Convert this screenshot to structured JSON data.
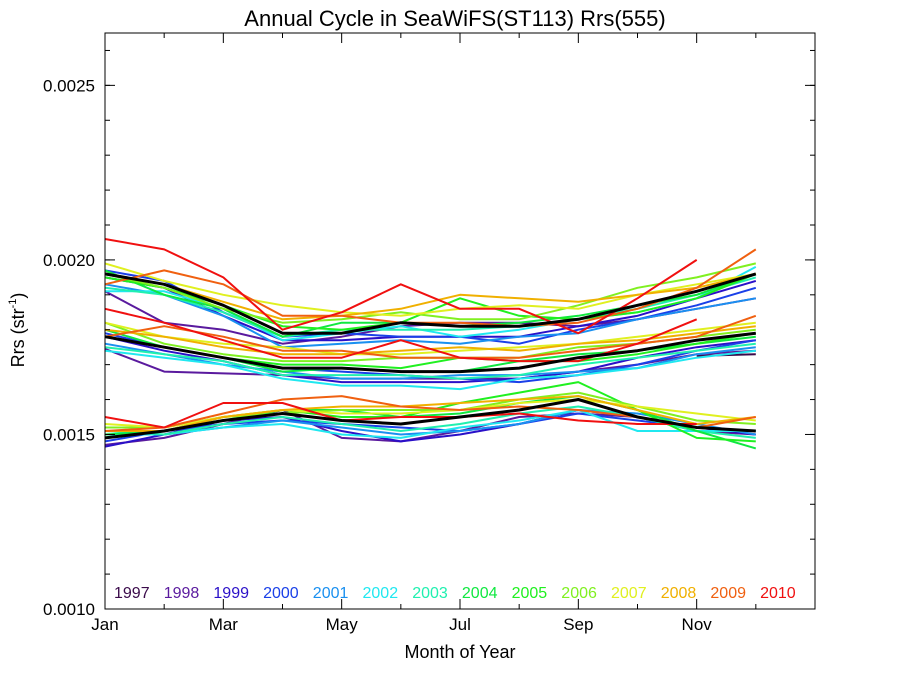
{
  "chart_data": {
    "type": "line",
    "title": "Annual Cycle in SeaWiFS(ST113) Rrs(555)",
    "xlabel": "Month of Year",
    "ylabel_main": "Rrs (str",
    "ylabel_sup": "-1",
    "ylabel_end": ")",
    "xlim": [
      1,
      13
    ],
    "ylim": [
      0.001,
      0.00265
    ],
    "x_ticks": [
      {
        "value": 1,
        "label": "Jan"
      },
      {
        "value": 3,
        "label": "Mar"
      },
      {
        "value": 5,
        "label": "May"
      },
      {
        "value": 7,
        "label": "Jul"
      },
      {
        "value": 9,
        "label": "Sep"
      },
      {
        "value": 11,
        "label": "Nov"
      }
    ],
    "y_ticks": [
      {
        "value": 0.001,
        "label": "0.0010"
      },
      {
        "value": 0.0015,
        "label": "0.0015"
      },
      {
        "value": 0.002,
        "label": "0.0020"
      },
      {
        "value": 0.0025,
        "label": "0.0025"
      }
    ],
    "legend_placement": "bottom",
    "grid": false,
    "months": [
      1,
      2,
      3,
      4,
      5,
      6,
      7,
      8,
      9,
      10,
      11,
      12
    ],
    "series": [
      {
        "name": "1997",
        "color": "#3a0a4a",
        "upper": [
          null,
          null,
          null,
          null,
          null,
          null,
          null,
          null,
          null,
          null,
          null,
          null
        ],
        "middle": [
          null,
          null,
          null,
          null,
          null,
          null,
          null,
          null,
          null,
          null,
          0.001725,
          0.00173
        ],
        "lower": [
          null,
          null,
          null,
          null,
          null,
          null,
          null,
          null,
          null,
          null,
          null,
          null
        ]
      },
      {
        "name": "1998",
        "color": "#5a1a9e",
        "upper": [
          0.00191,
          0.00182,
          0.0018,
          0.00176,
          0.00178,
          0.00181,
          0.00182,
          0.00182,
          0.00181,
          0.00183,
          0.00186,
          0.00189
        ],
        "middle": [
          0.001745,
          0.00168,
          0.001675,
          0.00167,
          0.00166,
          0.00166,
          0.00166,
          0.00166,
          0.00168,
          0.0017,
          0.00173,
          0.00174
        ],
        "lower": [
          0.00147,
          0.00149,
          0.00153,
          0.00157,
          0.00149,
          0.00148,
          0.00151,
          0.00155,
          0.00156,
          0.00155,
          0.00151,
          0.0015
        ]
      },
      {
        "name": "1999",
        "color": "#2a10c8",
        "upper": [
          0.00195,
          0.00192,
          0.00184,
          0.00177,
          0.00177,
          0.00178,
          0.00178,
          0.00178,
          0.00181,
          0.00184,
          0.00189,
          0.00194
        ],
        "middle": [
          0.00178,
          0.00174,
          0.00171,
          0.00167,
          0.00165,
          0.00165,
          0.00165,
          0.00166,
          0.00168,
          0.00172,
          0.00175,
          0.00177
        ],
        "lower": [
          0.001465,
          0.0015,
          0.00154,
          0.00155,
          0.00151,
          0.00148,
          0.0015,
          0.00153,
          0.00157,
          0.00155,
          0.00152,
          0.0015
        ]
      },
      {
        "name": "2000",
        "color": "#1a40e8",
        "upper": [
          0.00197,
          0.00194,
          0.00185,
          0.00178,
          0.00179,
          0.00178,
          0.00178,
          0.00176,
          0.0018,
          0.00183,
          0.00187,
          0.00192
        ],
        "middle": [
          0.00179,
          0.00175,
          0.00172,
          0.00169,
          0.00168,
          0.00167,
          0.00166,
          0.00165,
          0.00167,
          0.0017,
          0.00174,
          0.00177
        ],
        "lower": [
          0.00148,
          0.00151,
          0.00153,
          0.00154,
          0.00153,
          0.00152,
          0.00151,
          0.00153,
          0.00156,
          0.00154,
          0.00152,
          0.00151
        ]
      },
      {
        "name": "2001",
        "color": "#1a90f0",
        "upper": [
          0.00193,
          0.0019,
          0.00184,
          0.00175,
          0.00176,
          0.00177,
          0.00176,
          0.00178,
          0.00179,
          0.00183,
          0.00186,
          0.00189
        ],
        "middle": [
          0.00176,
          0.00173,
          0.0017,
          0.00168,
          0.00166,
          0.00166,
          0.00167,
          0.00167,
          0.00168,
          0.00169,
          0.00173,
          0.00175
        ],
        "lower": [
          0.0015,
          0.0015,
          0.00152,
          0.00154,
          0.00152,
          0.0015,
          0.00151,
          0.00153,
          0.00157,
          0.00156,
          0.00153,
          0.0015
        ]
      },
      {
        "name": "2002",
        "color": "#20e8f0",
        "upper": [
          0.00191,
          0.00191,
          0.00186,
          0.00177,
          0.00179,
          0.00181,
          0.00178,
          0.0018,
          0.00183,
          0.00185,
          0.00189,
          0.00198
        ],
        "middle": [
          0.00174,
          0.00172,
          0.0017,
          0.00166,
          0.00164,
          0.00164,
          0.00163,
          0.00166,
          0.00167,
          0.00169,
          0.00172,
          0.00174
        ],
        "lower": [
          0.0015,
          0.0015,
          0.00152,
          0.00153,
          0.0015,
          0.00149,
          0.00152,
          0.00154,
          0.00157,
          0.00151,
          0.00151,
          0.00151
        ]
      },
      {
        "name": "2003",
        "color": "#20f0b0",
        "upper": [
          0.00192,
          0.0019,
          0.00185,
          0.00178,
          0.0018,
          0.0018,
          0.0018,
          0.00181,
          0.00183,
          0.00186,
          0.0019,
          0.00195
        ],
        "middle": [
          0.00175,
          0.00173,
          0.00171,
          0.00167,
          0.00167,
          0.00167,
          0.00166,
          0.00167,
          0.0017,
          0.00172,
          0.00174,
          0.00176
        ],
        "lower": [
          0.00151,
          0.0015,
          0.00153,
          0.00155,
          0.00153,
          0.00151,
          0.00153,
          0.00156,
          0.00158,
          0.00155,
          0.00151,
          0.00149
        ]
      },
      {
        "name": "2004",
        "color": "#10e840",
        "upper": [
          0.00197,
          0.0019,
          0.00186,
          0.00178,
          0.00182,
          0.00182,
          0.00181,
          0.00182,
          0.00184,
          0.00187,
          0.0019,
          0.00196
        ],
        "middle": [
          0.0018,
          0.00175,
          0.00172,
          0.00168,
          0.00169,
          0.00168,
          0.00168,
          0.00171,
          0.00173,
          0.00174,
          0.00176,
          0.00178
        ],
        "lower": [
          0.0015,
          0.00151,
          0.00154,
          0.00157,
          0.00157,
          0.00155,
          0.00156,
          0.00159,
          0.00161,
          0.00157,
          0.00151,
          0.00146
        ]
      },
      {
        "name": "2005",
        "color": "#20f020",
        "upper": [
          0.00195,
          0.00192,
          0.00187,
          0.00181,
          0.0018,
          0.00182,
          0.00189,
          0.00184,
          0.00183,
          0.00185,
          0.00189,
          0.00196
        ],
        "middle": [
          0.00178,
          0.00175,
          0.00172,
          0.0017,
          0.0017,
          0.00169,
          0.00172,
          0.00171,
          0.00171,
          0.00173,
          0.00176,
          0.00179
        ],
        "lower": [
          0.00149,
          0.00151,
          0.00155,
          0.00157,
          0.00155,
          0.00155,
          0.00159,
          0.00162,
          0.00165,
          0.00157,
          0.00149,
          0.00148
        ]
      },
      {
        "name": "2006",
        "color": "#80f020",
        "upper": [
          0.00196,
          0.00192,
          0.00186,
          0.00182,
          0.00183,
          0.00185,
          0.00183,
          0.00183,
          0.00187,
          0.00192,
          0.00195,
          0.00199
        ],
        "middle": [
          0.00182,
          0.00176,
          0.00173,
          0.00171,
          0.00171,
          0.00172,
          0.00172,
          0.00172,
          0.00175,
          0.00176,
          0.00178,
          0.0018
        ],
        "lower": [
          0.00152,
          0.00152,
          0.00155,
          0.00156,
          0.00157,
          0.00157,
          0.00157,
          0.0016,
          0.00162,
          0.00158,
          0.00154,
          0.00153
        ]
      },
      {
        "name": "2007",
        "color": "#e0f020",
        "upper": [
          0.00199,
          0.00194,
          0.0019,
          0.00187,
          0.00185,
          0.00184,
          0.00186,
          0.00187,
          0.00186,
          0.0019,
          0.00193,
          0.00196
        ],
        "middle": [
          0.00182,
          0.00178,
          0.00176,
          0.00175,
          0.00173,
          0.00173,
          0.00174,
          0.00175,
          0.00176,
          0.00178,
          0.0018,
          0.00182
        ],
        "lower": [
          0.00153,
          0.00152,
          0.00155,
          0.00157,
          0.00156,
          0.00156,
          0.00157,
          0.00159,
          0.0016,
          0.00158,
          0.00156,
          0.00154
        ]
      },
      {
        "name": "2008",
        "color": "#f0b000",
        "upper": [
          0.00196,
          0.00193,
          0.00188,
          0.00183,
          0.00184,
          0.00186,
          0.0019,
          0.00189,
          0.00188,
          0.0019,
          0.00192,
          0.00196
        ],
        "middle": [
          0.0018,
          0.00178,
          0.00175,
          0.00173,
          0.00173,
          0.00174,
          0.00175,
          0.00174,
          0.00176,
          0.00177,
          0.00179,
          0.00181
        ],
        "lower": [
          0.00151,
          0.00151,
          0.00155,
          0.00157,
          0.00158,
          0.00158,
          0.00159,
          0.0016,
          0.00161,
          0.00157,
          0.00153,
          0.00155
        ]
      },
      {
        "name": "2009",
        "color": "#f06010",
        "upper": [
          0.00193,
          0.00197,
          0.00193,
          0.00184,
          0.00184,
          0.00182,
          0.00182,
          0.00181,
          0.00182,
          0.00186,
          0.00192,
          0.00203
        ],
        "middle": [
          0.00178,
          0.00181,
          0.00178,
          0.00174,
          0.00174,
          0.00172,
          0.00172,
          0.00172,
          0.00174,
          0.00176,
          0.00178,
          0.00184
        ],
        "lower": [
          0.00151,
          0.00152,
          0.00156,
          0.0016,
          0.00161,
          0.00158,
          0.00157,
          0.00158,
          0.00157,
          0.00155,
          0.00152,
          0.00155
        ]
      },
      {
        "name": "2010",
        "color": "#f01010",
        "upper": [
          0.00206,
          0.00203,
          0.00195,
          0.0018,
          0.00185,
          0.00193,
          0.00186,
          0.00186,
          0.00179,
          0.00189,
          0.002,
          null
        ],
        "middle": [
          0.00186,
          0.00182,
          0.00177,
          0.00172,
          0.00172,
          0.00177,
          0.00172,
          0.00171,
          0.00171,
          0.00176,
          0.00183,
          null
        ],
        "lower": [
          0.00155,
          0.00152,
          0.00159,
          0.00159,
          0.00154,
          0.00155,
          0.00155,
          0.00156,
          0.00154,
          0.00153,
          0.00153,
          null
        ]
      }
    ],
    "mean": {
      "name": "",
      "color": "#000000",
      "upper": [
        0.00196,
        0.00193,
        0.00187,
        0.00179,
        0.00179,
        0.00182,
        0.00181,
        0.00181,
        0.00183,
        0.00187,
        0.00191,
        0.00196
      ],
      "middle": [
        0.00178,
        0.00175,
        0.00172,
        0.00169,
        0.00169,
        0.00168,
        0.00168,
        0.00169,
        0.00172,
        0.00174,
        0.00177,
        0.00179
      ],
      "lower": [
        0.00149,
        0.00151,
        0.00154,
        0.00156,
        0.00154,
        0.00153,
        0.00155,
        0.00157,
        0.0016,
        0.00155,
        0.00152,
        0.00151
      ]
    }
  }
}
